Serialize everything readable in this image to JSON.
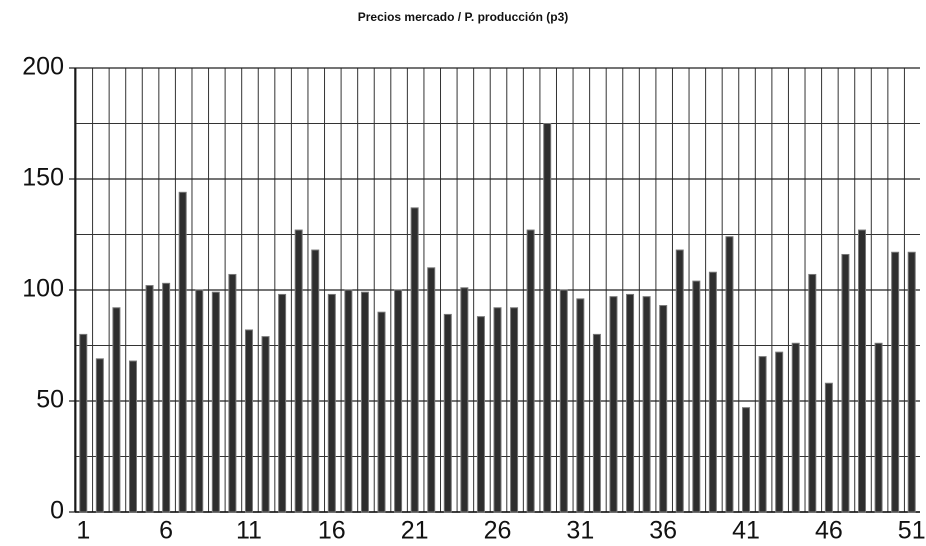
{
  "chart_data": {
    "type": "bar",
    "title": "Precios mercado / P. producción (p3)",
    "categories": [
      1,
      null,
      null,
      null,
      null,
      6,
      null,
      null,
      null,
      null,
      11,
      null,
      null,
      null,
      null,
      16,
      null,
      null,
      null,
      null,
      21,
      null,
      null,
      null,
      null,
      26,
      null,
      null,
      null,
      null,
      31,
      null,
      null,
      null,
      null,
      36,
      null,
      null,
      null,
      null,
      41,
      null,
      null,
      null,
      null,
      46,
      null,
      null,
      null,
      null,
      51
    ],
    "values": [
      80,
      69,
      92,
      68,
      102,
      103,
      144,
      100,
      99,
      107,
      82,
      79,
      98,
      127,
      118,
      98,
      100,
      99,
      90,
      100,
      137,
      110,
      89,
      101,
      88,
      92,
      92,
      127,
      175,
      100,
      96,
      80,
      97,
      98,
      97,
      93,
      118,
      104,
      108,
      124,
      47,
      70,
      72,
      76,
      107,
      58,
      116,
      127,
      76,
      117,
      117
    ],
    "color": "#2e2e2e",
    "ylim": [
      0,
      200
    ],
    "yticks": [
      0,
      50,
      100,
      150,
      200
    ],
    "minor_yticks": [
      25,
      75,
      125,
      175
    ],
    "grid": true
  }
}
